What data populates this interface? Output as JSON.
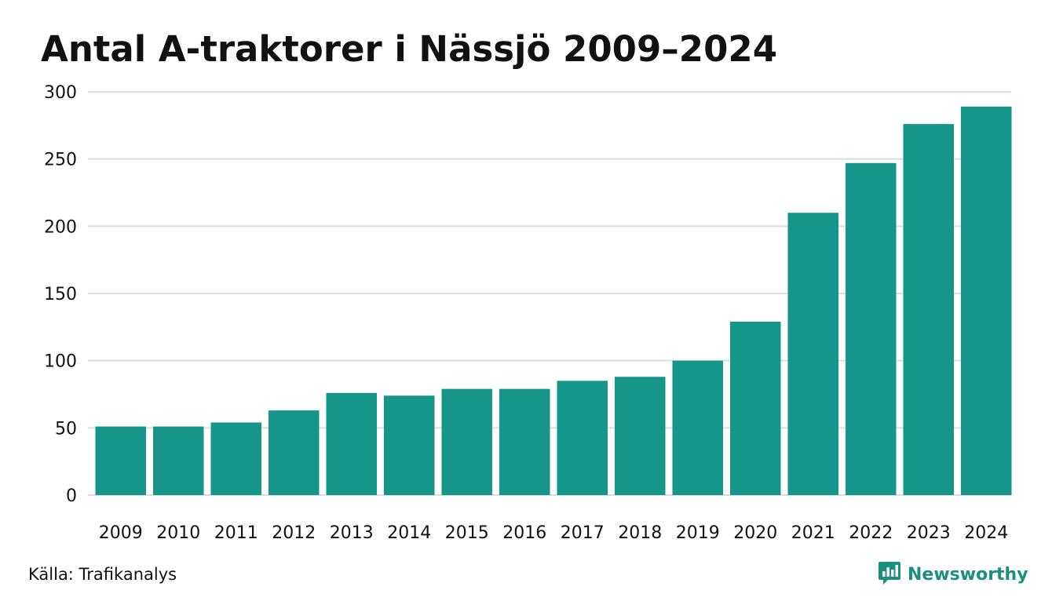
{
  "source": "Källa: Trafikanalys",
  "brand": {
    "name": "Newsworthy",
    "icon": "newsworthy-logo-icon"
  },
  "colors": {
    "bar": "#16968a",
    "grid": "#dddddd",
    "text": "#111111",
    "brand": "#1a8f80"
  },
  "chart_data": {
    "type": "bar",
    "title": "Antal A-traktorer i Nässjö 2009–2024",
    "xlabel": "",
    "ylabel": "",
    "categories": [
      "2009",
      "2010",
      "2011",
      "2012",
      "2013",
      "2014",
      "2015",
      "2016",
      "2017",
      "2018",
      "2019",
      "2020",
      "2021",
      "2022",
      "2023",
      "2024"
    ],
    "values": [
      51,
      51,
      54,
      63,
      76,
      74,
      79,
      79,
      85,
      88,
      100,
      129,
      210,
      247,
      276,
      289
    ],
    "ylim": [
      0,
      300
    ],
    "yticks": [
      "0",
      "50",
      "100",
      "150",
      "200",
      "250",
      "300"
    ],
    "grid": true,
    "legend": "none"
  }
}
